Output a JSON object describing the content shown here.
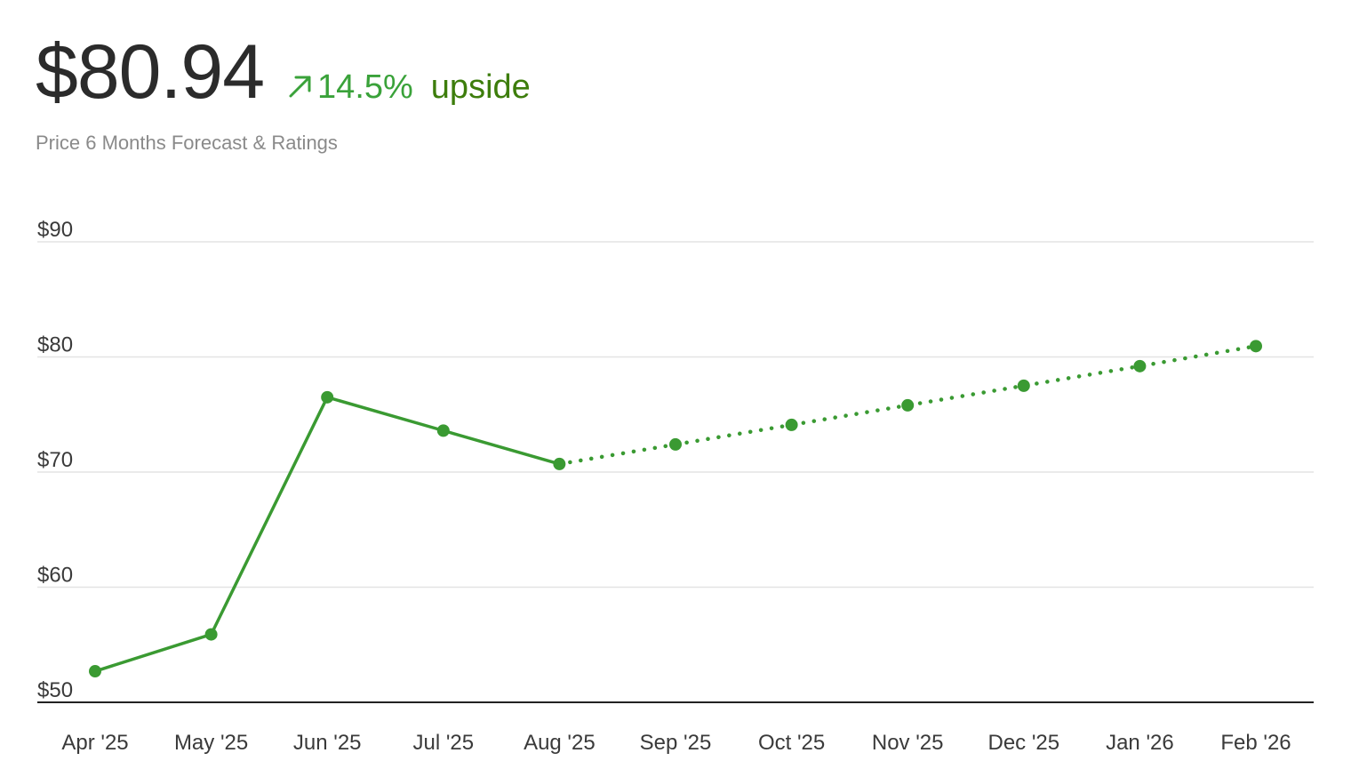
{
  "header": {
    "price": "$80.94",
    "change_pct": "14.5%",
    "change_word": "upside",
    "subtitle": "Price 6 Months Forecast & Ratings",
    "arrow_icon": "arrow-up-right-icon"
  },
  "colors": {
    "line": "#3a9a32",
    "positive": "#3aa23a",
    "upside_text": "#3d7d0c",
    "grid": "#e3e3e3",
    "axis": "#222222"
  },
  "chart_data": {
    "type": "line",
    "categories": [
      "Apr '25",
      "May '25",
      "Jun '25",
      "Jul '25",
      "Aug '25",
      "Sep '25",
      "Oct '25",
      "Nov '25",
      "Dec '25",
      "Jan '26",
      "Feb '26"
    ],
    "series": [
      {
        "style": "solid",
        "values": [
          52.7,
          55.9,
          76.5,
          73.6,
          70.7,
          null,
          null,
          null,
          null,
          null,
          null
        ]
      },
      {
        "style": "dotted",
        "values": [
          null,
          null,
          null,
          null,
          70.7,
          72.4,
          74.1,
          75.8,
          77.5,
          79.2,
          80.94
        ]
      }
    ],
    "ylim": [
      50,
      90
    ],
    "yticks": [
      50,
      60,
      70,
      80,
      90
    ],
    "ytick_labels": [
      "$50",
      "$60",
      "$70",
      "$80",
      "$90"
    ],
    "grid": true,
    "title": "",
    "xlabel": "",
    "ylabel": ""
  }
}
